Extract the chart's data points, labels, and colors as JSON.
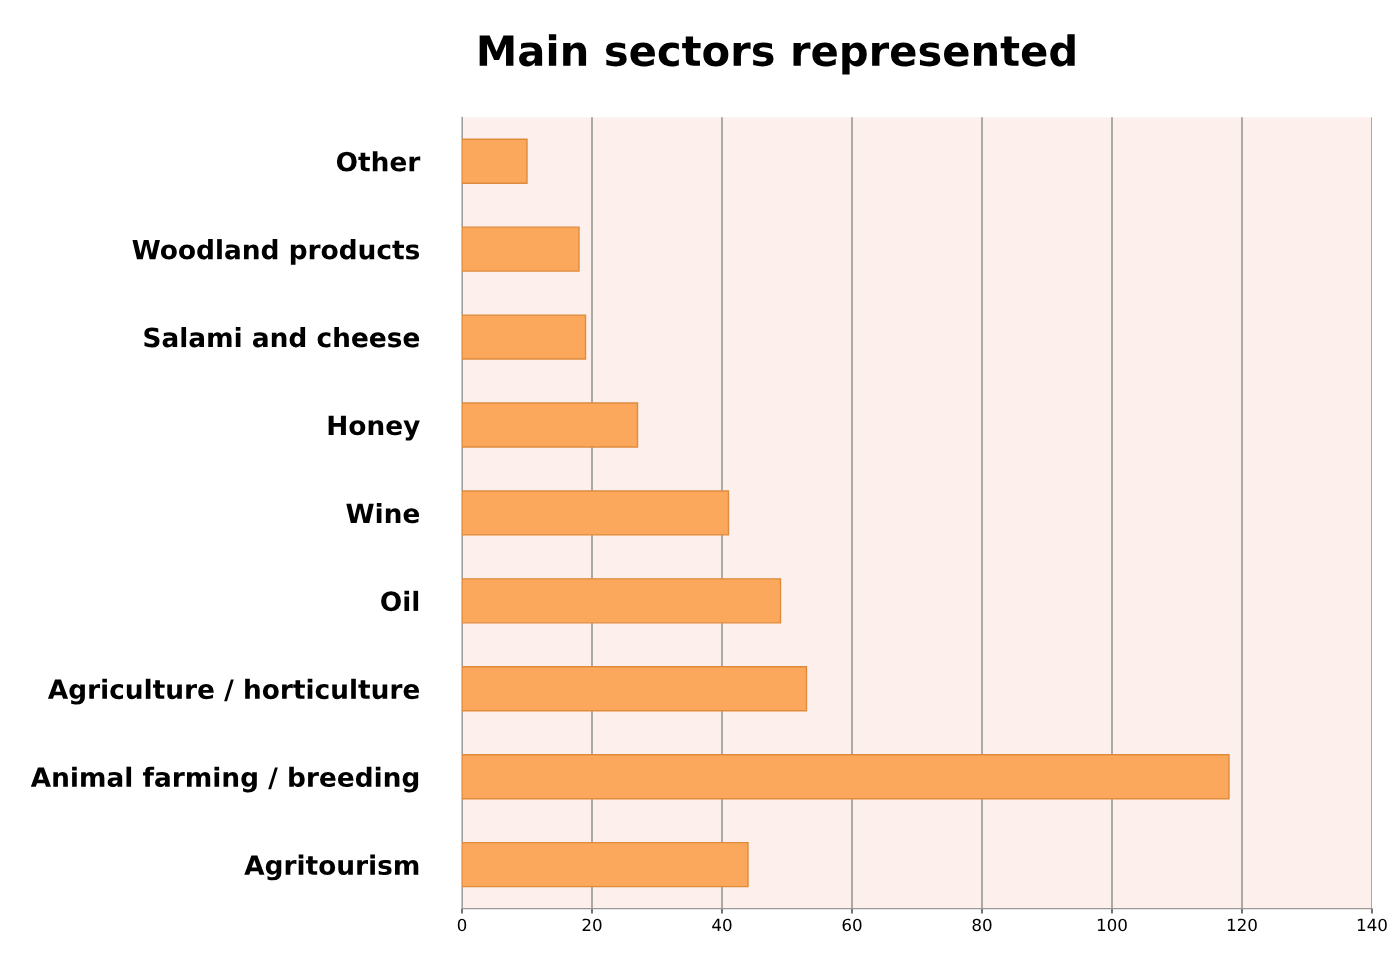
{
  "chart_data": {
    "type": "bar",
    "orientation": "horizontal",
    "title": "Main sectors represented",
    "categories": [
      "Other",
      "Woodland products",
      "Salami and cheese",
      "Honey",
      "Wine",
      "Oil",
      "Agriculture / horticulture",
      "Animal farming / breeding",
      "Agritourism"
    ],
    "values": [
      10,
      18,
      19,
      27,
      41,
      49,
      53,
      118,
      44
    ],
    "color": "#fba85c",
    "xlim": [
      0,
      140
    ],
    "xticks": [
      0,
      20,
      40,
      60,
      80,
      100,
      120,
      140
    ],
    "grid": "x"
  }
}
